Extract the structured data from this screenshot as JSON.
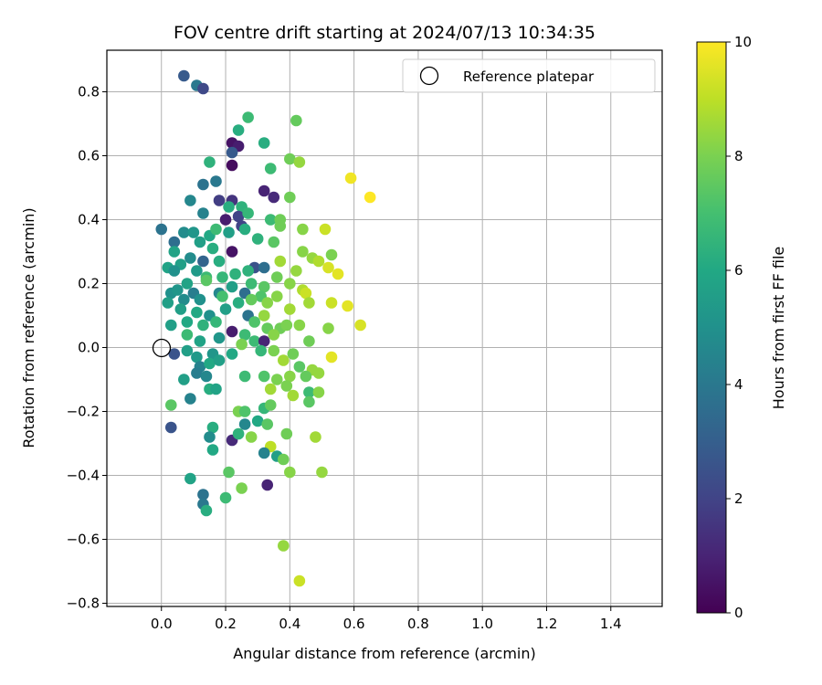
{
  "chart_data": {
    "type": "scatter",
    "title": "FOV centre drift starting at 2024/07/13 10:34:35",
    "xlabel": "Angular distance from reference (arcmin)",
    "ylabel": "Rotation from reference (arcmin)",
    "xlim": [
      -0.17,
      1.56
    ],
    "ylim": [
      -0.81,
      0.93
    ],
    "xticks": [
      0.0,
      0.2,
      0.4,
      0.6,
      0.8,
      1.0,
      1.2,
      1.4
    ],
    "xtick_labels": [
      "0.0",
      "0.2",
      "0.4",
      "0.6",
      "0.8",
      "1.0",
      "1.2",
      "1.4"
    ],
    "yticks": [
      -0.8,
      -0.6,
      -0.4,
      -0.2,
      0.0,
      0.2,
      0.4,
      0.6,
      0.8
    ],
    "ytick_labels": [
      "−0.8",
      "−0.6",
      "−0.4",
      "−0.2",
      "0.0",
      "0.2",
      "0.4",
      "0.6",
      "0.8"
    ],
    "grid": true,
    "legend": {
      "position": "top-right",
      "entries": [
        "Reference platepar"
      ]
    },
    "reference_point": {
      "x": 0.0,
      "y": 0.0,
      "label": "Reference platepar"
    },
    "colorbar": {
      "label": "Hours from first FF file",
      "colormap": "viridis",
      "range": [
        0,
        10
      ],
      "ticks": [
        0,
        2,
        4,
        6,
        8,
        10
      ],
      "tick_labels": [
        "0",
        "2",
        "4",
        "6",
        "8",
        "10"
      ]
    },
    "points": [
      [
        0.07,
        0.85,
        2.8
      ],
      [
        0.11,
        0.82,
        4.0
      ],
      [
        0.13,
        0.81,
        2.2
      ],
      [
        0.27,
        0.72,
        6.8
      ],
      [
        0.24,
        0.68,
        6.2
      ],
      [
        0.42,
        0.71,
        7.6
      ],
      [
        0.22,
        0.64,
        0.5
      ],
      [
        0.24,
        0.63,
        0.8
      ],
      [
        0.32,
        0.64,
        6.2
      ],
      [
        0.22,
        0.61,
        2.8
      ],
      [
        0.15,
        0.58,
        6.4
      ],
      [
        0.22,
        0.57,
        0.3
      ],
      [
        0.34,
        0.56,
        6.8
      ],
      [
        0.4,
        0.59,
        7.8
      ],
      [
        0.43,
        0.58,
        8.4
      ],
      [
        0.59,
        0.53,
        9.8
      ],
      [
        0.65,
        0.47,
        10.0
      ],
      [
        0.13,
        0.51,
        3.8
      ],
      [
        0.17,
        0.52,
        4.0
      ],
      [
        0.09,
        0.46,
        4.6
      ],
      [
        0.18,
        0.46,
        1.8
      ],
      [
        0.22,
        0.46,
        1.5
      ],
      [
        0.32,
        0.49,
        1.0
      ],
      [
        0.35,
        0.47,
        1.2
      ],
      [
        0.4,
        0.47,
        7.8
      ],
      [
        0.13,
        0.42,
        4.4
      ],
      [
        0.21,
        0.44,
        6.2
      ],
      [
        0.25,
        0.44,
        6.4
      ],
      [
        0.24,
        0.41,
        2.0
      ],
      [
        0.27,
        0.42,
        6.6
      ],
      [
        0.2,
        0.4,
        0.8
      ],
      [
        0.25,
        0.38,
        2.0
      ],
      [
        0.34,
        0.4,
        6.8
      ],
      [
        0.37,
        0.4,
        7.8
      ],
      [
        0.0,
        0.37,
        3.8
      ],
      [
        0.07,
        0.36,
        4.8
      ],
      [
        0.1,
        0.36,
        5.2
      ],
      [
        0.15,
        0.35,
        6.0
      ],
      [
        0.17,
        0.37,
        6.8
      ],
      [
        0.21,
        0.36,
        5.6
      ],
      [
        0.26,
        0.37,
        6.2
      ],
      [
        0.37,
        0.38,
        7.8
      ],
      [
        0.44,
        0.37,
        8.2
      ],
      [
        0.51,
        0.37,
        9.2
      ],
      [
        0.04,
        0.33,
        3.6
      ],
      [
        0.12,
        0.33,
        5.6
      ],
      [
        0.16,
        0.31,
        6.2
      ],
      [
        0.22,
        0.3,
        0.5
      ],
      [
        0.3,
        0.34,
        6.4
      ],
      [
        0.35,
        0.33,
        7.4
      ],
      [
        0.44,
        0.3,
        8.2
      ],
      [
        0.47,
        0.28,
        8.4
      ],
      [
        0.53,
        0.29,
        8.0
      ],
      [
        0.04,
        0.3,
        5.8
      ],
      [
        0.06,
        0.26,
        5.6
      ],
      [
        0.09,
        0.28,
        4.8
      ],
      [
        0.13,
        0.27,
        3.2
      ],
      [
        0.18,
        0.27,
        6.2
      ],
      [
        0.29,
        0.25,
        2.5
      ],
      [
        0.32,
        0.25,
        3.6
      ],
      [
        0.37,
        0.27,
        8.6
      ],
      [
        0.49,
        0.27,
        8.8
      ],
      [
        0.52,
        0.25,
        9.4
      ],
      [
        0.02,
        0.25,
        5.8
      ],
      [
        0.04,
        0.24,
        5.0
      ],
      [
        0.11,
        0.24,
        5.4
      ],
      [
        0.14,
        0.22,
        6.8
      ],
      [
        0.19,
        0.22,
        6.6
      ],
      [
        0.23,
        0.23,
        6.4
      ],
      [
        0.27,
        0.24,
        6.4
      ],
      [
        0.36,
        0.22,
        7.8
      ],
      [
        0.42,
        0.24,
        8.4
      ],
      [
        0.55,
        0.23,
        9.6
      ],
      [
        0.08,
        0.2,
        5.8
      ],
      [
        0.14,
        0.21,
        7.4
      ],
      [
        0.22,
        0.19,
        5.6
      ],
      [
        0.28,
        0.2,
        6.8
      ],
      [
        0.32,
        0.19,
        7.4
      ],
      [
        0.4,
        0.2,
        8.2
      ],
      [
        0.44,
        0.18,
        8.8
      ],
      [
        0.03,
        0.17,
        5.0
      ],
      [
        0.05,
        0.18,
        5.2
      ],
      [
        0.1,
        0.17,
        4.2
      ],
      [
        0.18,
        0.17,
        4.6
      ],
      [
        0.26,
        0.17,
        3.6
      ],
      [
        0.31,
        0.16,
        7.2
      ],
      [
        0.36,
        0.16,
        8.2
      ],
      [
        0.45,
        0.17,
        9.2
      ],
      [
        0.02,
        0.14,
        5.6
      ],
      [
        0.07,
        0.15,
        4.8
      ],
      [
        0.12,
        0.15,
        5.0
      ],
      [
        0.19,
        0.16,
        7.0
      ],
      [
        0.24,
        0.14,
        6.2
      ],
      [
        0.28,
        0.15,
        7.6
      ],
      [
        0.33,
        0.14,
        8.2
      ],
      [
        0.46,
        0.14,
        8.6
      ],
      [
        0.53,
        0.14,
        9.2
      ],
      [
        0.58,
        0.13,
        9.6
      ],
      [
        0.06,
        0.12,
        5.6
      ],
      [
        0.11,
        0.11,
        6.0
      ],
      [
        0.15,
        0.1,
        5.0
      ],
      [
        0.2,
        0.12,
        5.6
      ],
      [
        0.27,
        0.1,
        3.8
      ],
      [
        0.32,
        0.1,
        8.4
      ],
      [
        0.4,
        0.12,
        8.6
      ],
      [
        0.43,
        0.07,
        8.2
      ],
      [
        0.52,
        0.06,
        8.2
      ],
      [
        0.62,
        0.07,
        9.4
      ],
      [
        0.03,
        0.07,
        5.6
      ],
      [
        0.08,
        0.08,
        6.0
      ],
      [
        0.13,
        0.07,
        6.4
      ],
      [
        0.17,
        0.08,
        6.6
      ],
      [
        0.22,
        0.05,
        0.8
      ],
      [
        0.26,
        0.04,
        6.8
      ],
      [
        0.29,
        0.08,
        7.2
      ],
      [
        0.33,
        0.06,
        7.6
      ],
      [
        0.37,
        0.06,
        7.8
      ],
      [
        0.39,
        0.07,
        8.0
      ],
      [
        0.08,
        0.04,
        6.8
      ],
      [
        0.12,
        0.02,
        5.8
      ],
      [
        0.18,
        0.03,
        5.2
      ],
      [
        0.25,
        0.01,
        8.0
      ],
      [
        0.29,
        0.02,
        6.8
      ],
      [
        0.32,
        0.02,
        1.0
      ],
      [
        0.35,
        0.04,
        8.2
      ],
      [
        0.46,
        0.02,
        7.8
      ],
      [
        0.04,
        -0.02,
        2.6
      ],
      [
        0.08,
        -0.01,
        5.6
      ],
      [
        0.11,
        -0.03,
        5.4
      ],
      [
        0.16,
        -0.02,
        5.2
      ],
      [
        0.22,
        -0.02,
        6.0
      ],
      [
        0.31,
        -0.01,
        6.6
      ],
      [
        0.35,
        -0.01,
        8.0
      ],
      [
        0.41,
        -0.02,
        7.8
      ],
      [
        0.53,
        -0.03,
        9.6
      ],
      [
        0.12,
        -0.06,
        4.4
      ],
      [
        0.15,
        -0.05,
        6.0
      ],
      [
        0.18,
        -0.04,
        5.6
      ],
      [
        0.38,
        -0.04,
        8.6
      ],
      [
        0.43,
        -0.06,
        7.4
      ],
      [
        0.47,
        -0.07,
        8.4
      ],
      [
        0.07,
        -0.1,
        5.6
      ],
      [
        0.11,
        -0.08,
        4.2
      ],
      [
        0.14,
        -0.09,
        4.6
      ],
      [
        0.26,
        -0.09,
        6.8
      ],
      [
        0.32,
        -0.09,
        7.2
      ],
      [
        0.36,
        -0.1,
        8.0
      ],
      [
        0.4,
        -0.09,
        8.2
      ],
      [
        0.45,
        -0.09,
        7.6
      ],
      [
        0.49,
        -0.08,
        8.4
      ],
      [
        0.15,
        -0.13,
        6.2
      ],
      [
        0.17,
        -0.13,
        5.8
      ],
      [
        0.34,
        -0.13,
        8.6
      ],
      [
        0.39,
        -0.12,
        8.0
      ],
      [
        0.41,
        -0.15,
        8.6
      ],
      [
        0.46,
        -0.14,
        6.8
      ],
      [
        0.49,
        -0.14,
        8.2
      ],
      [
        0.09,
        -0.16,
        4.4
      ],
      [
        0.46,
        -0.17,
        7.4
      ],
      [
        0.03,
        -0.18,
        7.4
      ],
      [
        0.24,
        -0.2,
        8.0
      ],
      [
        0.26,
        -0.2,
        7.2
      ],
      [
        0.32,
        -0.19,
        6.6
      ],
      [
        0.34,
        -0.18,
        7.6
      ],
      [
        0.03,
        -0.25,
        2.6
      ],
      [
        0.16,
        -0.25,
        6.2
      ],
      [
        0.26,
        -0.24,
        4.6
      ],
      [
        0.3,
        -0.23,
        6.0
      ],
      [
        0.33,
        -0.24,
        7.4
      ],
      [
        0.15,
        -0.28,
        4.8
      ],
      [
        0.22,
        -0.29,
        1.2
      ],
      [
        0.24,
        -0.27,
        6.4
      ],
      [
        0.28,
        -0.28,
        8.2
      ],
      [
        0.39,
        -0.27,
        7.8
      ],
      [
        0.48,
        -0.28,
        8.6
      ],
      [
        0.16,
        -0.32,
        6.0
      ],
      [
        0.34,
        -0.31,
        9.0
      ],
      [
        0.32,
        -0.33,
        4.4
      ],
      [
        0.36,
        -0.34,
        5.6
      ],
      [
        0.38,
        -0.35,
        7.8
      ],
      [
        0.21,
        -0.39,
        7.4
      ],
      [
        0.4,
        -0.39,
        8.2
      ],
      [
        0.5,
        -0.39,
        8.4
      ],
      [
        0.09,
        -0.41,
        5.8
      ],
      [
        0.33,
        -0.43,
        1.0
      ],
      [
        0.25,
        -0.44,
        8.0
      ],
      [
        0.13,
        -0.46,
        3.8
      ],
      [
        0.2,
        -0.47,
        6.8
      ],
      [
        0.13,
        -0.49,
        4.0
      ],
      [
        0.14,
        -0.51,
        6.2
      ],
      [
        0.38,
        -0.62,
        8.4
      ],
      [
        0.43,
        -0.73,
        9.2
      ]
    ]
  }
}
